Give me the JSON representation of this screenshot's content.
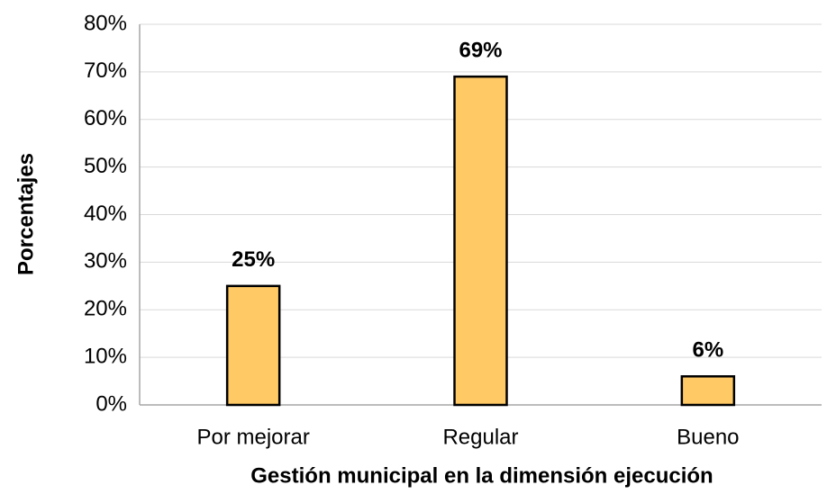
{
  "chart_data": {
    "type": "bar",
    "x_label": "Gestión municipal en la dimensión ejecución",
    "y_label": "Porcentajes",
    "categories": [
      "Por mejorar",
      "Regular",
      "Bueno"
    ],
    "values": [
      25,
      69,
      6
    ],
    "value_labels": [
      "25%",
      "69%",
      "6%"
    ],
    "color": "#ffc966",
    "ylim": [
      0,
      80
    ],
    "yticks": [
      {
        "value": 0,
        "label": "0%"
      },
      {
        "value": 10,
        "label": "10%"
      },
      {
        "value": 20,
        "label": "20%"
      },
      {
        "value": 30,
        "label": "30%"
      },
      {
        "value": 40,
        "label": "40%"
      },
      {
        "value": 50,
        "label": "50%"
      },
      {
        "value": 60,
        "label": "60%"
      },
      {
        "value": 70,
        "label": "70%"
      },
      {
        "value": 80,
        "label": "80%"
      }
    ],
    "grid": true
  }
}
